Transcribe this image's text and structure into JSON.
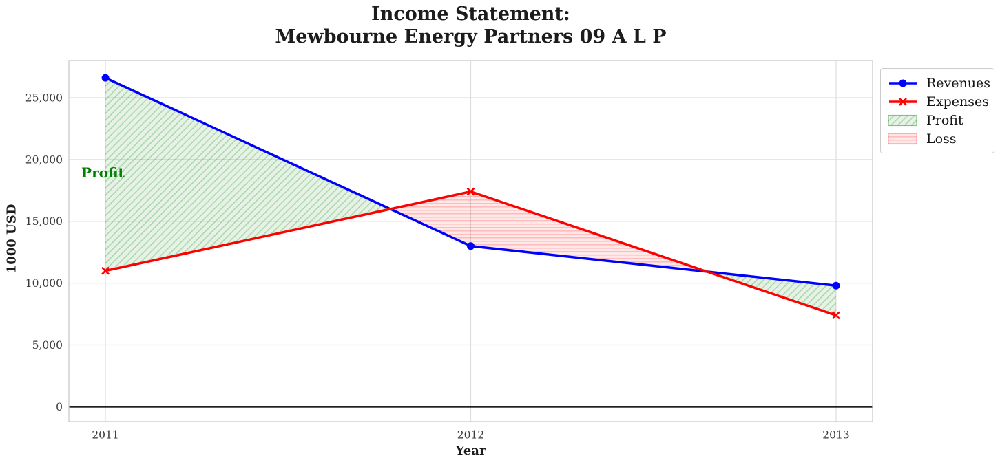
{
  "chart_data": {
    "type": "line",
    "title": "Income Statement:\nMewbourne Energy Partners 09 A L P",
    "xlabel": "Year",
    "ylabel": "1000 USD",
    "x": [
      2011,
      2012,
      2013
    ],
    "series": [
      {
        "name": "Revenues",
        "color": "#0000ff",
        "marker": "circle",
        "values": [
          26600,
          13000,
          9800
        ]
      },
      {
        "name": "Expenses",
        "color": "#ff0000",
        "marker": "x",
        "values": [
          11000,
          17400,
          7400
        ]
      }
    ],
    "fills": [
      {
        "name": "Profit",
        "when": "revenues_above_expenses",
        "hatch": "diagonal",
        "bg": "rgba(0,128,0,0.10)",
        "hatch_color": "rgba(0,128,0,0.26)",
        "edge": "rgba(0,128,0,0.45)"
      },
      {
        "name": "Loss",
        "when": "expenses_above_revenues",
        "hatch": "horizontal",
        "bg": "rgba(255,0,0,0.09)",
        "hatch_color": "rgba(255,0,0,0.20)",
        "edge": "rgba(255,0,0,0.28)"
      }
    ],
    "annotation": {
      "text": "Profit",
      "color": "#008000",
      "x": 2010.934,
      "y": 18850
    },
    "legend": {
      "items": [
        {
          "label": "Revenues",
          "type": "line",
          "color": "#0000ff",
          "marker": "circle"
        },
        {
          "label": "Expenses",
          "type": "line",
          "color": "#ff0000",
          "marker": "x"
        },
        {
          "label": "Profit",
          "type": "patch",
          "hatch": "diagonal"
        },
        {
          "label": "Loss",
          "type": "patch",
          "hatch": "horizontal"
        }
      ],
      "position": "upper-right-outside"
    },
    "xlim": [
      2010.9,
      2013.1
    ],
    "ylim": [
      -1200,
      28000
    ],
    "yticks": {
      "values": [
        0,
        5000,
        10000,
        15000,
        20000,
        25000
      ],
      "labels": [
        "0",
        "5,000",
        "10,000",
        "15,000",
        "20,000",
        "25,000"
      ]
    },
    "xticks": {
      "values": [
        2011,
        2012,
        2013
      ],
      "labels": [
        "2011",
        "2012",
        "2013"
      ]
    },
    "zero_line": {
      "value": 0,
      "color": "#000000"
    },
    "grid": true,
    "grid_color": "#dedede",
    "border_color": "#c9c9c9",
    "background": "#ffffff"
  }
}
